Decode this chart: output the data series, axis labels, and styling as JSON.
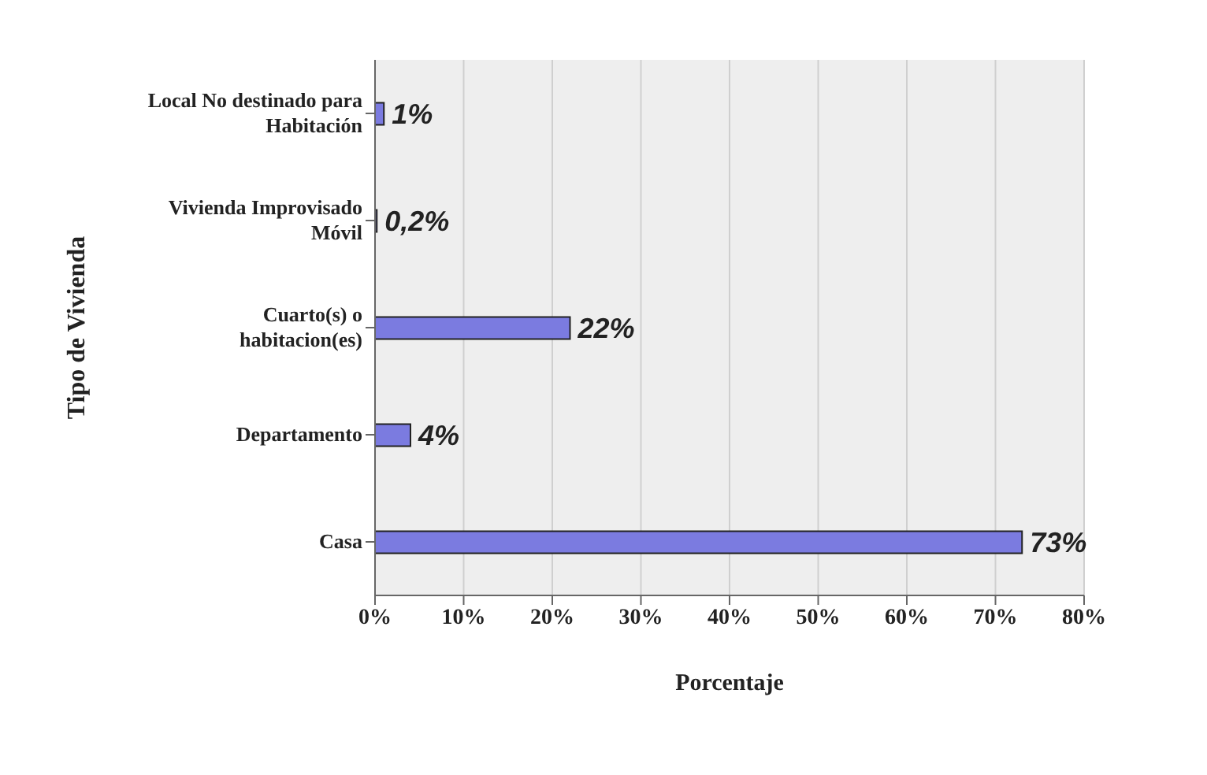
{
  "chart_data": {
    "type": "bar",
    "orientation": "horizontal",
    "xlabel": "Porcentaje",
    "ylabel": "Tipo de Vivienda",
    "categories": [
      "Local No destinado para Habitación",
      "Vivienda Improvisado Móvil",
      "Cuarto(s) o habitacion(es)",
      "Departamento",
      "Casa"
    ],
    "values": [
      1,
      0.2,
      22,
      4,
      73
    ],
    "value_labels": [
      "1%",
      "0,2%",
      "22%",
      "4%",
      "73%"
    ],
    "color": "#7b7be0",
    "xlim": [
      0,
      80
    ],
    "xticks": [
      {
        "value": 0,
        "label": "0%"
      },
      {
        "value": 10,
        "label": "10%"
      },
      {
        "value": 20,
        "label": "20%"
      },
      {
        "value": 30,
        "label": "30%"
      },
      {
        "value": 40,
        "label": "40%"
      },
      {
        "value": 50,
        "label": "50%"
      },
      {
        "value": 60,
        "label": "60%"
      },
      {
        "value": 70,
        "label": "70%"
      },
      {
        "value": 80,
        "label": "80%"
      }
    ],
    "grid": "x"
  }
}
